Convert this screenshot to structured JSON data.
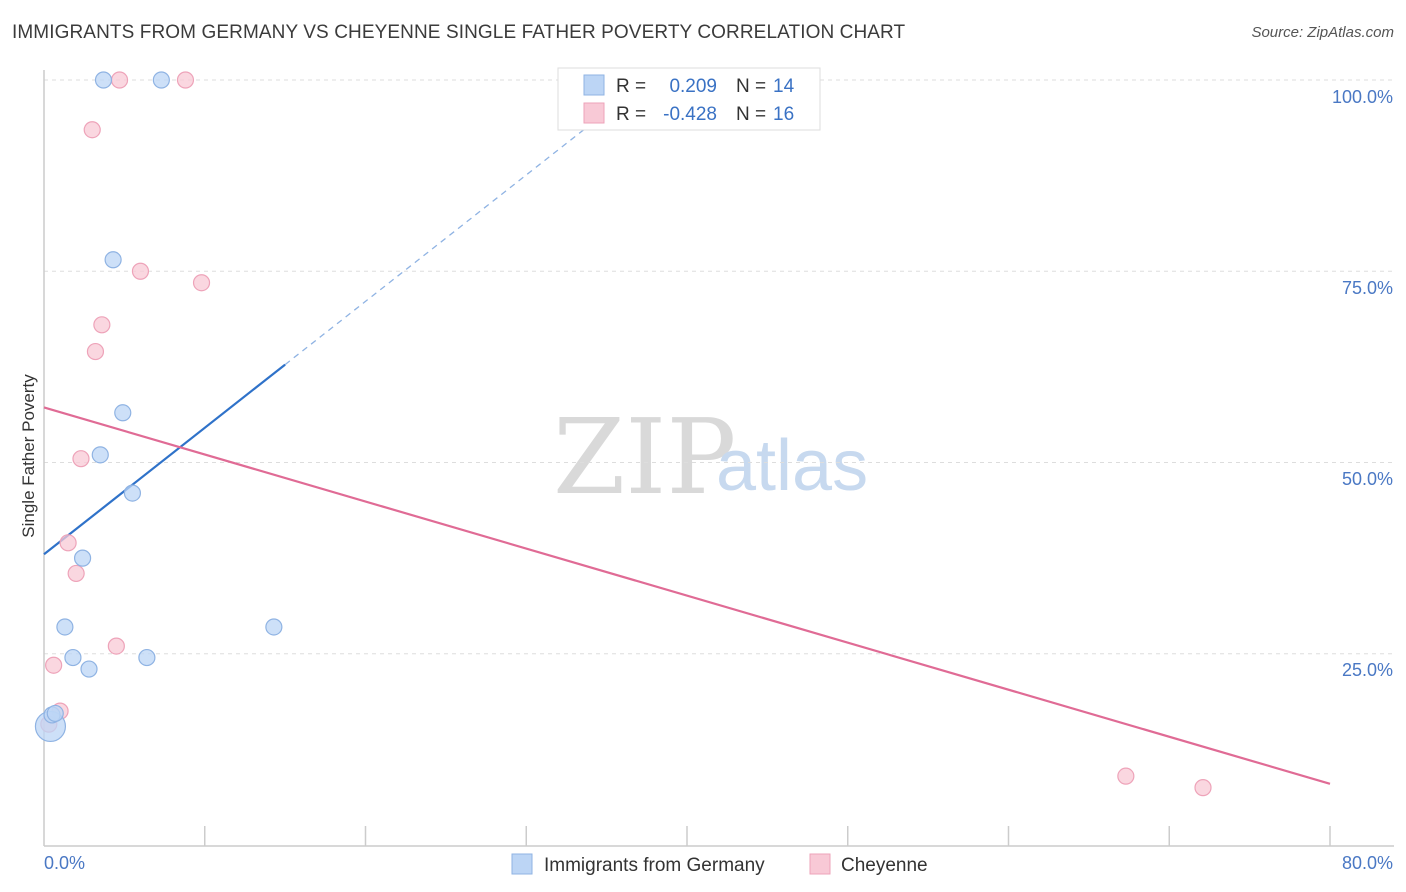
{
  "header": {
    "title": "IMMIGRANTS FROM GERMANY VS CHEYENNE SINGLE FATHER POVERTY CORRELATION CHART",
    "source": "Source: ZipAtlas.com"
  },
  "watermark": {
    "zip": "ZIP",
    "atlas": "atlas"
  },
  "legend": {
    "rows": [
      {
        "r_label": "R =",
        "r_value": "0.209",
        "n_label": "N =",
        "n_value": "14"
      },
      {
        "r_label": "R =",
        "r_value": "-0.428",
        "n_label": "N =",
        "n_value": "16"
      }
    ]
  },
  "colors": {
    "blue_fill": "#bcd5f5",
    "blue_stroke": "#8fb3e3",
    "blue_line": "#2f72c9",
    "pink_fill": "#f8c9d6",
    "pink_stroke": "#eea3b9",
    "pink_line": "#e06b95",
    "value_text": "#3a72c4",
    "grid": "#dddddd"
  },
  "chart_data": {
    "type": "scatter",
    "xlabel": "",
    "ylabel": "Single Father Poverty",
    "xlim": [
      0,
      80
    ],
    "ylim": [
      0,
      100
    ],
    "x_ticks": [
      "0.0%",
      "80.0%"
    ],
    "y_ticks": [
      "25.0%",
      "50.0%",
      "75.0%",
      "100.0%"
    ],
    "grid": true,
    "legend_position": "top-center",
    "series": [
      {
        "name": "Immigrants from Germany",
        "color": "#bcd5f5",
        "points": [
          {
            "x": 0.4,
            "y": 15.5,
            "big": true
          },
          {
            "x": 0.5,
            "y": 17.0
          },
          {
            "x": 0.7,
            "y": 17.2
          },
          {
            "x": 1.3,
            "y": 28.5
          },
          {
            "x": 1.8,
            "y": 24.5
          },
          {
            "x": 2.4,
            "y": 37.5
          },
          {
            "x": 2.8,
            "y": 23.0
          },
          {
            "x": 3.5,
            "y": 51.0
          },
          {
            "x": 3.7,
            "y": 100.0
          },
          {
            "x": 4.3,
            "y": 76.5
          },
          {
            "x": 4.9,
            "y": 56.5
          },
          {
            "x": 5.5,
            "y": 46.0
          },
          {
            "x": 6.4,
            "y": 24.5
          },
          {
            "x": 7.3,
            "y": 100.0
          },
          {
            "x": 14.3,
            "y": 28.5
          }
        ],
        "trend": {
          "x0": 0,
          "y0": 38.0,
          "x1": 15.0,
          "y1": 62.8,
          "dashed_to_x": 36.0,
          "dashed_to_y": 97.5
        }
      },
      {
        "name": "Cheyenne",
        "color": "#f8c9d6",
        "points": [
          {
            "x": 0.3,
            "y": 15.8
          },
          {
            "x": 0.6,
            "y": 23.5
          },
          {
            "x": 1.0,
            "y": 17.5
          },
          {
            "x": 1.5,
            "y": 39.5
          },
          {
            "x": 2.0,
            "y": 35.5
          },
          {
            "x": 2.3,
            "y": 50.5
          },
          {
            "x": 3.0,
            "y": 93.5
          },
          {
            "x": 3.2,
            "y": 64.5
          },
          {
            "x": 3.6,
            "y": 68.0
          },
          {
            "x": 4.5,
            "y": 26.0
          },
          {
            "x": 4.7,
            "y": 100.0
          },
          {
            "x": 6.0,
            "y": 75.0
          },
          {
            "x": 8.8,
            "y": 100.0
          },
          {
            "x": 9.8,
            "y": 73.5
          },
          {
            "x": 67.3,
            "y": 9.0
          },
          {
            "x": 72.1,
            "y": 7.5
          }
        ],
        "trend": {
          "x0": 0,
          "y0": 57.2,
          "x1": 80,
          "y1": 8.0
        }
      }
    ]
  }
}
